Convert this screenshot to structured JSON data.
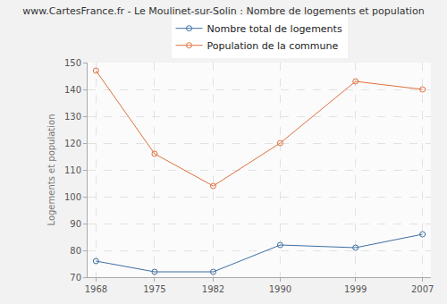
{
  "chart_data": {
    "type": "line",
    "title": "www.CartesFrance.fr - Le Moulinet-sur-Solin : Nombre de logements et population",
    "y_label": "Logements et population",
    "x": [
      1968,
      1975,
      1982,
      1990,
      1999,
      2007
    ],
    "series": [
      {
        "name": "Nombre total de logements",
        "color": "#3d6fa3",
        "values": [
          76,
          72,
          72,
          82,
          81,
          86
        ]
      },
      {
        "name": "Population de la commune",
        "color": "#e0703f",
        "values": [
          147,
          116,
          104,
          120,
          143,
          140
        ]
      }
    ],
    "xlim": [
      1967,
      2008
    ],
    "xticks": [
      1968,
      1975,
      1982,
      1990,
      1999,
      2007
    ],
    "ylim": [
      70,
      150
    ],
    "yticks": [
      70,
      80,
      90,
      100,
      110,
      120,
      130,
      140,
      150
    ],
    "grid": true,
    "legend": "top",
    "marker": "circle-open"
  }
}
